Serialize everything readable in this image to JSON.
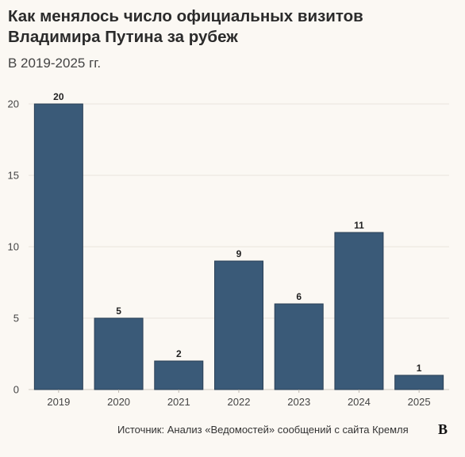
{
  "title": "Как менялось число официальных визитов Владимира Путина за рубеж",
  "subtitle": "В 2019-2025 гг.",
  "footer": {
    "source": "Источник: Анализ «Ведомостей» сообщений с сайта Кремля",
    "logo": "В"
  },
  "chart_data": {
    "type": "bar",
    "title": "Как менялось число официальных визитов Владимира Путина за рубеж",
    "subtitle": "В 2019-2025 гг.",
    "categories": [
      "2019",
      "2020",
      "2021",
      "2022",
      "2023",
      "2024",
      "2025"
    ],
    "values": [
      20,
      5,
      2,
      9,
      6,
      11,
      1
    ],
    "xlabel": "",
    "ylabel": "",
    "ylim": [
      0,
      20
    ],
    "yticks": [
      0,
      5,
      10,
      15,
      20
    ],
    "grid": true,
    "bar_color": "#3a5a78"
  }
}
